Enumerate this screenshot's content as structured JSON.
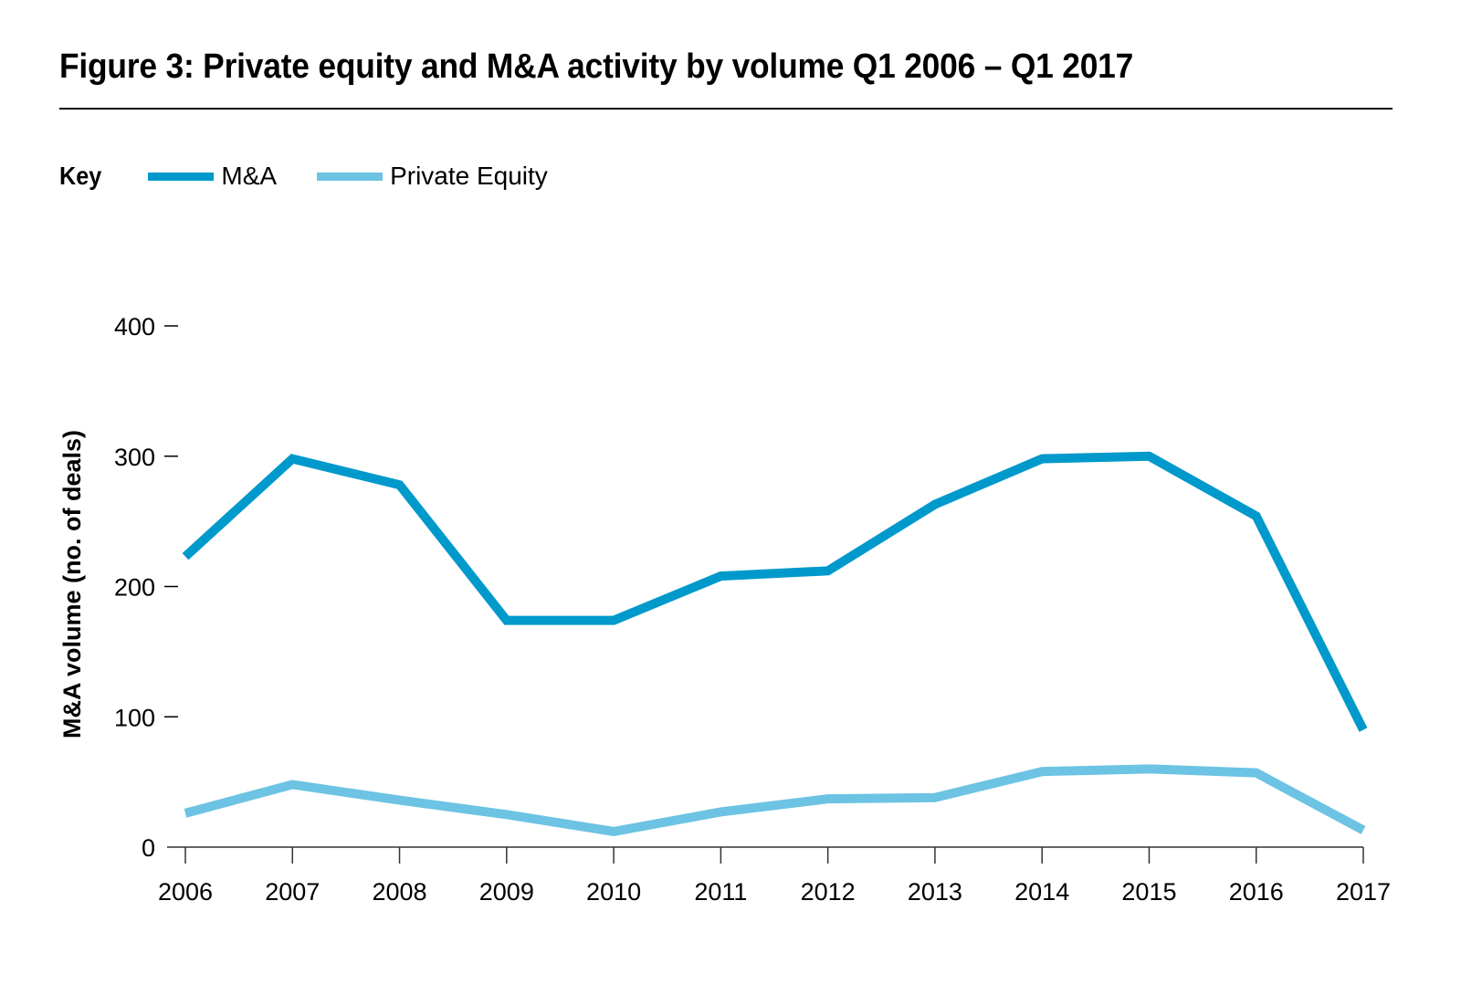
{
  "figure": {
    "title": "Figure 3: Private equity and M&A activity by volume Q1 2006 – Q1 2017"
  },
  "legend": {
    "key_label": "Key",
    "entries": [
      {
        "label": "M&A",
        "color": "#0099cc"
      },
      {
        "label": "Private Equity",
        "color": "#6cc3e3"
      }
    ]
  },
  "chart_data": {
    "type": "line",
    "title": "Figure 3: Private equity and M&A activity by volume Q1 2006 – Q1 2017",
    "xlabel": "",
    "ylabel": "M&A volume (no. of deals)",
    "x": [
      "2006",
      "2007",
      "2008",
      "2009",
      "2010",
      "2011",
      "2012",
      "2013",
      "2014",
      "2015",
      "2016",
      "2017"
    ],
    "ylim": [
      0,
      400
    ],
    "yticks": [
      0,
      100,
      200,
      300,
      400
    ],
    "ytick_labels": [
      "0",
      "100 –",
      "200 –",
      "300 –",
      "400 –"
    ],
    "grid": false,
    "legend_position": "top-left",
    "series": [
      {
        "name": "M&A",
        "color": "#0099cc",
        "values": [
          223,
          298,
          278,
          174,
          174,
          208,
          212,
          263,
          298,
          300,
          254,
          90
        ]
      },
      {
        "name": "Private Equity",
        "color": "#6cc3e3",
        "values": [
          26,
          48,
          36,
          25,
          12,
          27,
          37,
          38,
          58,
          60,
          57,
          13
        ]
      }
    ]
  }
}
